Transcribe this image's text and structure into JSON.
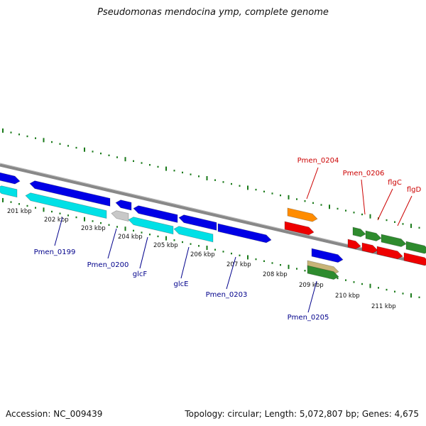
{
  "title": "Pseudomonas mendocina ymp, complete genome",
  "footer": {
    "accession": "Accession: NC_009439",
    "topology": "Topology: circular; Length: 5,072,807 bp; Genes: 4,675"
  },
  "colors": {
    "cds_forward": "#0000e6",
    "cds_reverse": "#00e0e6",
    "pseudo": "#c8c8c8",
    "gene_red": "#ee0000",
    "gene_orange": "#ff8c00",
    "gene_green": "#2e8b2e",
    "gene_tan": "#c8b478",
    "label_blue": "#00008b",
    "label_red": "#cc0000",
    "tick_green": "#1a7a1a",
    "backbone": "#888888"
  },
  "scale": {
    "ticks": [
      {
        "label": "201 kbp"
      },
      {
        "label": "202 kbp"
      },
      {
        "label": "203 kbp"
      },
      {
        "label": "204 kbp"
      },
      {
        "label": "205 kbp"
      },
      {
        "label": "206 kbp"
      },
      {
        "label": "207 kbp"
      },
      {
        "label": "208 kbp"
      },
      {
        "label": "209 kbp"
      },
      {
        "label": "210 kbp"
      },
      {
        "label": "211 kbp"
      }
    ]
  },
  "gene_labels": [
    {
      "text": "Pmen_0199",
      "color": "label_blue"
    },
    {
      "text": "Pmen_0200",
      "color": "label_blue"
    },
    {
      "text": "glcF",
      "color": "label_blue"
    },
    {
      "text": "glcE",
      "color": "label_blue"
    },
    {
      "text": "Pmen_0203",
      "color": "label_blue"
    },
    {
      "text": "Pmen_0204",
      "color": "label_red"
    },
    {
      "text": "Pmen_0205",
      "color": "label_blue"
    },
    {
      "text": "Pmen_0206",
      "color": "label_red"
    },
    {
      "text": "flgC",
      "color": "label_red"
    },
    {
      "text": "flgD",
      "color": "label_red"
    }
  ]
}
